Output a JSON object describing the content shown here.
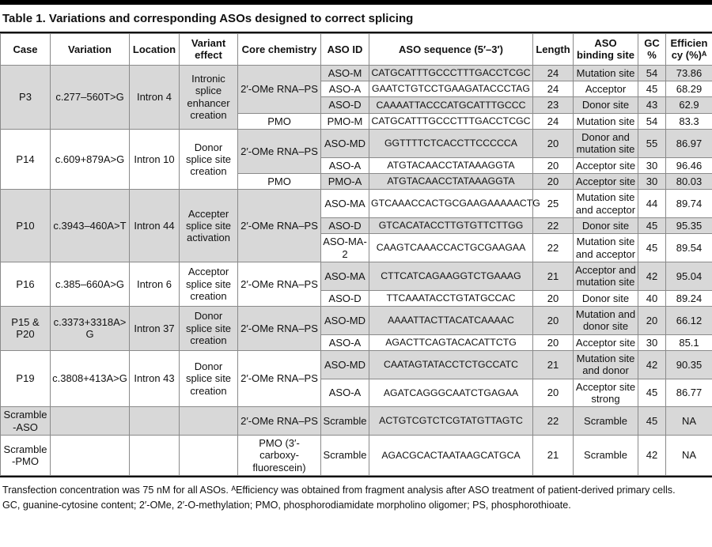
{
  "page": {
    "title": "Table 1. Variations and corresponding ASOs designed to correct splicing"
  },
  "colors": {
    "row_shade": "#d8d8d8",
    "grid_line": "#8a8a8a",
    "rule": "#000000"
  },
  "table": {
    "columns": [
      "Case",
      "Variation",
      "Location",
      "Variant effect",
      "Core chemistry",
      "ASO ID",
      "ASO sequence (5′–3′)",
      "Length",
      "ASO binding site",
      "GC %",
      "Efficiency (%)ᴬ"
    ],
    "blocks": [
      {
        "case": "P3",
        "variation": "c.277–560T>G",
        "location": "Intron 4",
        "effect": "Intronic splice enhancer creation",
        "shade": "gray",
        "chem": [
          {
            "label": "2′-OMe RNA–PS",
            "span": 3,
            "shade": "gray"
          },
          {
            "label": "PMO",
            "span": 1,
            "shade": "white"
          }
        ],
        "rows": [
          {
            "id": "ASO-M",
            "seq": "CATGCATTTGCCCTTTGACCTCGC",
            "len": "24",
            "site": "Mutation site",
            "gc": "54",
            "eff": "73.86",
            "shade": "gray"
          },
          {
            "id": "ASO-A",
            "seq": "GAATCTGTCCTGAAGATACCCTAG",
            "len": "24",
            "site": "Acceptor",
            "gc": "45",
            "eff": "68.29",
            "shade": "white"
          },
          {
            "id": "ASO-D",
            "seq": "CAAAATTACCCATGCATTTGCCC",
            "len": "23",
            "site": "Donor site",
            "gc": "43",
            "eff": "62.9",
            "shade": "gray"
          },
          {
            "id": "PMO-M",
            "seq": "CATGCATTTGCCCTTTGACCTCGC",
            "len": "24",
            "site": "Mutation site",
            "gc": "54",
            "eff": "83.3",
            "shade": "white"
          }
        ]
      },
      {
        "case": "P14",
        "variation": "c.609+879A>G",
        "location": "Intron 10",
        "effect": "Donor splice site creation",
        "shade": "white",
        "chem": [
          {
            "label": "2′-OMe RNA–PS",
            "span": 2,
            "shade": "gray"
          },
          {
            "label": "PMO",
            "span": 1,
            "shade": "white"
          }
        ],
        "rows": [
          {
            "id": "ASO-MD",
            "seq": "GGTTTTCTCACCTTCCCCCA",
            "len": "20",
            "site": "Donor and mutation site",
            "gc": "55",
            "eff": "86.97",
            "shade": "gray"
          },
          {
            "id": "ASO-A",
            "seq": "ATGTACAACCTATAAAGGTA",
            "len": "20",
            "site": "Acceptor site",
            "gc": "30",
            "eff": "96.46",
            "shade": "white"
          },
          {
            "id": "PMO-A",
            "seq": "ATGTACAACCTATAAAGGTA",
            "len": "20",
            "site": "Acceptor site",
            "gc": "30",
            "eff": "80.03",
            "shade": "gray"
          }
        ]
      },
      {
        "case": "P10",
        "variation": "c.3943–460A>T",
        "location": "Intron 44",
        "effect": "Accepter splice site activation",
        "shade": "gray",
        "chem": [
          {
            "label": "2′-OMe RNA–PS",
            "span": 3,
            "shade": "gray"
          }
        ],
        "rows": [
          {
            "id": "ASO-MA",
            "seq": "GTCAAACCACTGCGAAGAAAAACTG",
            "len": "25",
            "site": "Mutation site and acceptor",
            "gc": "44",
            "eff": "89.74",
            "shade": "white"
          },
          {
            "id": "ASO-D",
            "seq": "GTCACATACCTTGTGTTCTTGG",
            "len": "22",
            "site": "Donor site",
            "gc": "45",
            "eff": "95.35",
            "shade": "gray"
          },
          {
            "id": "ASO-MA-2",
            "seq": "CAAGTCAAACCACTGCGAAGAA",
            "len": "22",
            "site": "Mutation site and acceptor",
            "gc": "45",
            "eff": "89.54",
            "shade": "white"
          }
        ]
      },
      {
        "case": "P16",
        "variation": "c.385–660A>G",
        "location": "Intron 6",
        "effect": "Acceptor splice site creation",
        "shade": "white",
        "chem": [
          {
            "label": "2′-OMe RNA–PS",
            "span": 2,
            "shade": "white"
          }
        ],
        "rows": [
          {
            "id": "ASO-MA",
            "seq": "CTTCATCAGAAGGTCTGAAAG",
            "len": "21",
            "site": "Acceptor and mutation site",
            "gc": "42",
            "eff": "95.04",
            "shade": "gray"
          },
          {
            "id": "ASO-D",
            "seq": "TTCAAATACCTGTATGCCAC",
            "len": "20",
            "site": "Donor site",
            "gc": "40",
            "eff": "89.24",
            "shade": "white"
          }
        ]
      },
      {
        "case": "P15 & P20",
        "variation": "c.3373+3318A>G",
        "location": "Intron 37",
        "effect": "Donor splice site creation",
        "shade": "gray",
        "chem": [
          {
            "label": "2′-OMe RNA–PS",
            "span": 2,
            "shade": "gray"
          }
        ],
        "rows": [
          {
            "id": "ASO-MD",
            "seq": "AAAATTACTTACATCAAAAC",
            "len": "20",
            "site": "Mutation and donor site",
            "gc": "20",
            "eff": "66.12",
            "shade": "gray"
          },
          {
            "id": "ASO-A",
            "seq": "AGACTTCAGTACACATTCTG",
            "len": "20",
            "site": "Acceptor site",
            "gc": "30",
            "eff": "85.1",
            "shade": "white"
          }
        ]
      },
      {
        "case": "P19",
        "variation": "c.3808+413A>G",
        "location": "Intron 43",
        "effect": "Donor splice site creation",
        "shade": "white",
        "chem": [
          {
            "label": "2′-OMe RNA–PS",
            "span": 2,
            "shade": "white"
          }
        ],
        "rows": [
          {
            "id": "ASO-MD",
            "seq": "CAATAGTATACCTCTGCCATC",
            "len": "21",
            "site": "Mutation site and donor",
            "gc": "42",
            "eff": "90.35",
            "shade": "gray"
          },
          {
            "id": "ASO-A",
            "seq": "AGATCAGGGCAATCTGAGAA",
            "len": "20",
            "site": "Acceptor site strong",
            "gc": "45",
            "eff": "86.77",
            "shade": "white"
          }
        ]
      },
      {
        "case": "Scramble-ASO",
        "variation": "",
        "location": "",
        "effect": "",
        "shade": "gray",
        "chem": [
          {
            "label": "2′-OMe RNA–PS",
            "span": 1,
            "shade": "gray"
          }
        ],
        "rows": [
          {
            "id": "Scramble",
            "seq": "ACTGTCGTCTCGTATGTTAGTC",
            "len": "22",
            "site": "Scramble",
            "gc": "45",
            "eff": "NA",
            "shade": "gray"
          }
        ]
      },
      {
        "case": "Scramble-PMO",
        "variation": "",
        "location": "",
        "effect": "",
        "shade": "white",
        "chem": [
          {
            "label": "PMO (3′-carboxy-fluorescein)",
            "span": 1,
            "shade": "white"
          }
        ],
        "rows": [
          {
            "id": "Scramble",
            "seq": "AGACGCACTAATAAGCATGCA",
            "len": "21",
            "site": "Scramble",
            "gc": "42",
            "eff": "NA",
            "shade": "white"
          }
        ]
      }
    ],
    "footnotes": [
      "Transfection concentration was 75 nM for all ASOs. ᴬEfficiency was obtained from fragment analysis after ASO treatment of patient-derived primary cells.",
      "GC, guanine-cytosine content; 2′-OMe, 2′-O-methylation; PMO, phosphorodiamidate morpholino oligomer; PS, phosphorothioate."
    ]
  }
}
